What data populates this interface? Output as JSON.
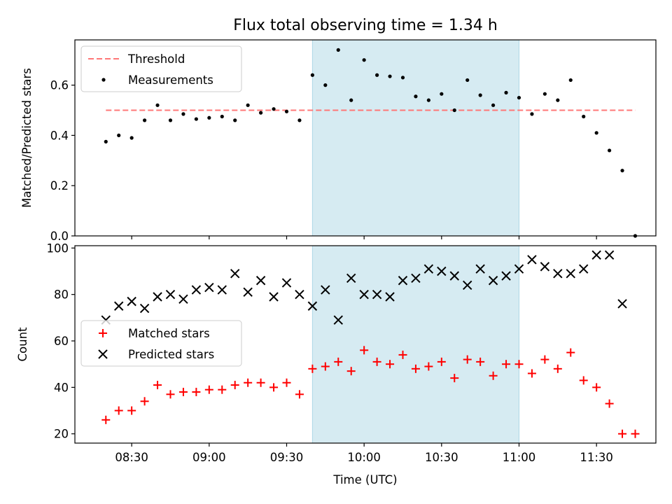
{
  "chart_data": [
    {
      "type": "scatter",
      "panel": "top",
      "title": "Flux total observing time = 1.34 h",
      "xlabel": "",
      "ylabel": "Matched/Predicted stars",
      "ylim": [
        0,
        0.78
      ],
      "yticks": [
        0.0,
        0.2,
        0.4,
        0.6
      ],
      "ytick_labels": [
        "0.0",
        "0.2",
        "0.4",
        "0.6"
      ],
      "grid": false,
      "legend_position": "top-left",
      "highlight_span": {
        "x_start": "09:40",
        "x_end": "11:00",
        "color": "#add8e6"
      },
      "threshold": {
        "name": "Threshold",
        "value": 0.5,
        "x_start": "08:20",
        "x_end": "11:45",
        "color": "#ff7777"
      },
      "series": [
        {
          "name": "Measurements",
          "color": "#000000",
          "x": [
            "08:20",
            "08:25",
            "08:30",
            "08:35",
            "08:40",
            "08:45",
            "08:50",
            "08:55",
            "09:00",
            "09:05",
            "09:10",
            "09:15",
            "09:20",
            "09:25",
            "09:30",
            "09:35",
            "09:40",
            "09:45",
            "09:50",
            "09:55",
            "10:00",
            "10:05",
            "10:10",
            "10:15",
            "10:20",
            "10:25",
            "10:30",
            "10:35",
            "10:40",
            "10:45",
            "10:50",
            "10:55",
            "11:00",
            "11:05",
            "11:10",
            "11:15",
            "11:20",
            "11:25",
            "11:30",
            "11:35",
            "11:40",
            "11:45"
          ],
          "y": [
            0.375,
            0.4,
            0.39,
            0.46,
            0.52,
            0.46,
            0.485,
            0.465,
            0.47,
            0.475,
            0.46,
            0.52,
            0.49,
            0.505,
            0.495,
            0.46,
            0.64,
            0.6,
            0.74,
            0.54,
            0.7,
            0.64,
            0.635,
            0.63,
            0.555,
            0.54,
            0.565,
            0.5,
            0.62,
            0.56,
            0.52,
            0.57,
            0.55,
            0.485,
            0.565,
            0.54,
            0.62,
            0.475,
            0.41,
            0.34,
            0.26,
            0.0
          ]
        }
      ]
    },
    {
      "type": "scatter",
      "panel": "bottom",
      "title": "",
      "xlabel": "Time (UTC)",
      "ylabel": "Count",
      "ylim": [
        16,
        101
      ],
      "yticks": [
        20,
        40,
        60,
        80,
        100
      ],
      "ytick_labels": [
        "20",
        "40",
        "60",
        "80",
        "100"
      ],
      "xticks": [
        "08:30",
        "09:00",
        "09:30",
        "10:00",
        "10:30",
        "11:00",
        "11:30"
      ],
      "xtick_labels": [
        "08:30",
        "09:00",
        "09:30",
        "10:00",
        "10:30",
        "11:00",
        "11:30"
      ],
      "grid": false,
      "legend_position": "center-left",
      "highlight_span": {
        "x_start": "09:40",
        "x_end": "11:00",
        "color": "#add8e6"
      },
      "series": [
        {
          "name": "Matched stars",
          "marker": "plus",
          "color": "#ff0000",
          "x": [
            "08:20",
            "08:25",
            "08:30",
            "08:35",
            "08:40",
            "08:45",
            "08:50",
            "08:55",
            "09:00",
            "09:05",
            "09:10",
            "09:15",
            "09:20",
            "09:25",
            "09:30",
            "09:35",
            "09:40",
            "09:45",
            "09:50",
            "09:55",
            "10:00",
            "10:05",
            "10:10",
            "10:15",
            "10:20",
            "10:25",
            "10:30",
            "10:35",
            "10:40",
            "10:45",
            "10:50",
            "10:55",
            "11:00",
            "11:05",
            "11:10",
            "11:15",
            "11:20",
            "11:25",
            "11:30",
            "11:35",
            "11:40",
            "11:45"
          ],
          "y": [
            26,
            30,
            30,
            34,
            41,
            37,
            38,
            38,
            39,
            39,
            41,
            42,
            42,
            40,
            42,
            37,
            48,
            49,
            51,
            47,
            56,
            51,
            50,
            54,
            48,
            49,
            51,
            44,
            52,
            51,
            45,
            50,
            50,
            46,
            52,
            48,
            55,
            43,
            40,
            33,
            20,
            20
          ]
        },
        {
          "name": "Predicted stars",
          "marker": "x",
          "color": "#000000",
          "x": [
            "08:20",
            "08:25",
            "08:30",
            "08:35",
            "08:40",
            "08:45",
            "08:50",
            "08:55",
            "09:00",
            "09:05",
            "09:10",
            "09:15",
            "09:20",
            "09:25",
            "09:30",
            "09:35",
            "09:40",
            "09:45",
            "09:50",
            "09:55",
            "10:00",
            "10:05",
            "10:10",
            "10:15",
            "10:20",
            "10:25",
            "10:30",
            "10:35",
            "10:40",
            "10:45",
            "10:50",
            "10:55",
            "11:00",
            "11:05",
            "11:10",
            "11:15",
            "11:20",
            "11:25",
            "11:30",
            "11:35",
            "11:40"
          ],
          "y": [
            69,
            75,
            77,
            74,
            79,
            80,
            78,
            82,
            83,
            82,
            89,
            81,
            86,
            79,
            85,
            80,
            75,
            82,
            69,
            87,
            80,
            80,
            79,
            86,
            87,
            91,
            90,
            88,
            84,
            91,
            86,
            88,
            91,
            95,
            92,
            89,
            89,
            91,
            97,
            97,
            76
          ]
        }
      ]
    }
  ]
}
